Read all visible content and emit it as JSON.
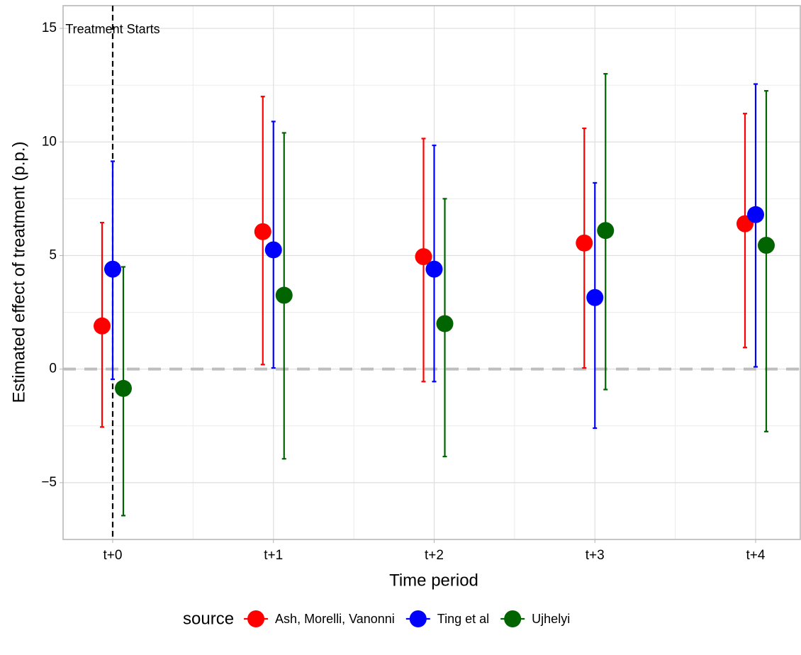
{
  "chart_data": {
    "type": "pointrange",
    "x_label": "Time period",
    "y_label": "Estimated effect of treatment (p.p.)",
    "categories": [
      "t+0",
      "t+1",
      "t+2",
      "t+3",
      "t+4"
    ],
    "ylim": [
      -7.5,
      16
    ],
    "yticks": [
      {
        "value": -5,
        "label": "−5"
      },
      0,
      5,
      10,
      15
    ],
    "grid": true,
    "hline": 0,
    "annotation": {
      "text": "Treatment Starts",
      "x": "t+0"
    },
    "legend_title": "source",
    "legend_position": "bottom",
    "series": [
      {
        "name": "Ash, Morelli, Vanonni",
        "color": "#ff0000",
        "values": [
          1.9,
          6.05,
          4.95,
          5.55,
          6.4
        ],
        "lower": [
          -2.55,
          0.2,
          -0.55,
          0.05,
          0.95
        ],
        "upper": [
          6.45,
          12.0,
          10.15,
          10.6,
          11.25
        ]
      },
      {
        "name": "Ting et al",
        "color": "#0000ff",
        "values": [
          4.4,
          5.25,
          4.4,
          3.15,
          6.8
        ],
        "lower": [
          -0.45,
          0.05,
          -0.55,
          -2.6,
          0.1
        ],
        "upper": [
          9.15,
          10.9,
          9.85,
          8.2,
          12.55
        ]
      },
      {
        "name": "Ujhelyi",
        "color": "#006400",
        "values": [
          -0.85,
          3.25,
          2.0,
          6.1,
          5.45
        ],
        "lower": [
          -6.45,
          -3.95,
          -3.85,
          -0.9,
          -2.75
        ],
        "upper": [
          4.5,
          10.4,
          7.5,
          13.0,
          12.25
        ]
      }
    ]
  }
}
